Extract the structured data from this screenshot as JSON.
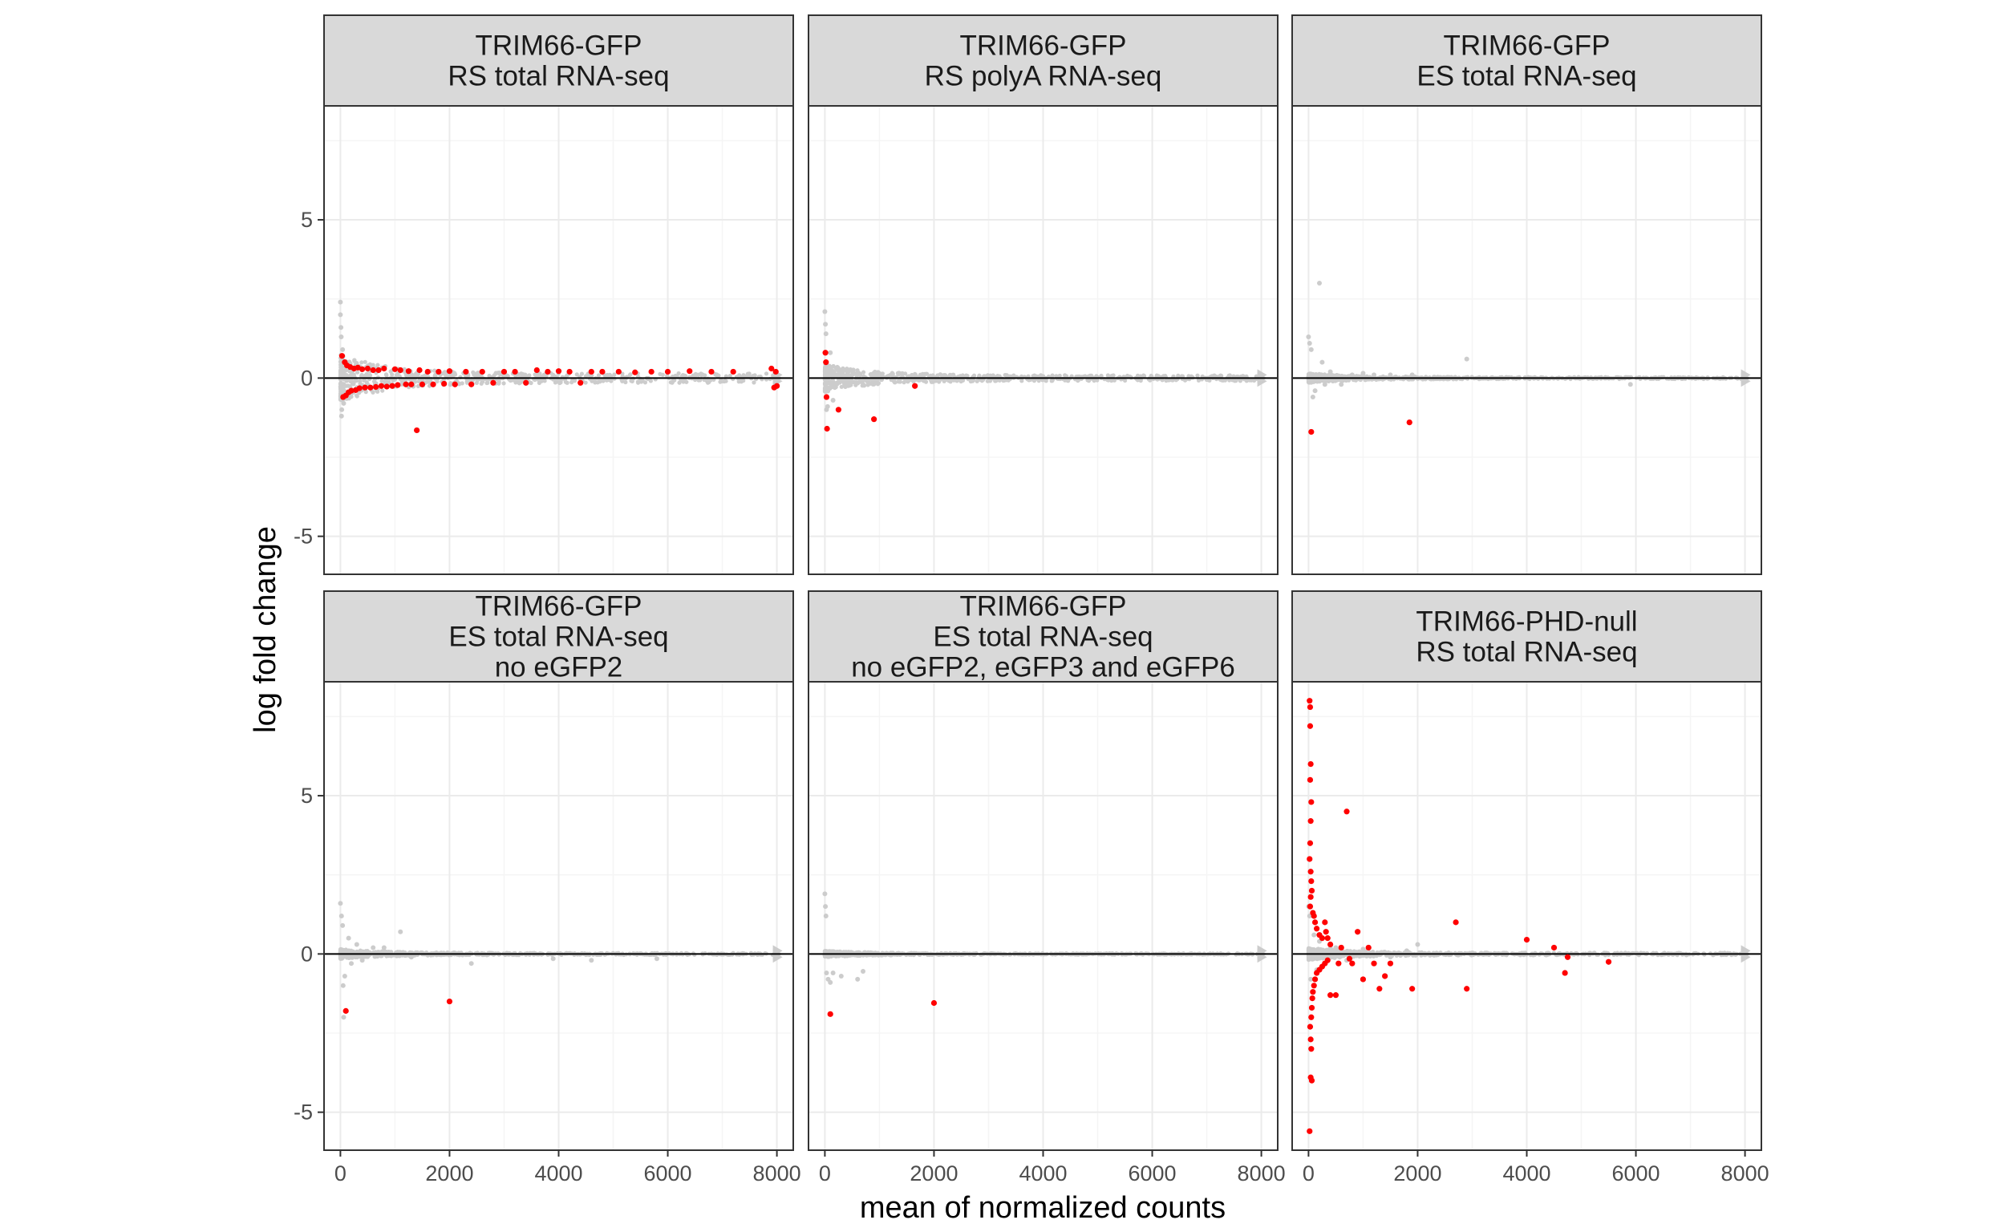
{
  "chart_data": {
    "type": "scatter",
    "xlabel": "mean of normalized counts",
    "ylabel": "log fold change",
    "xlim": [
      -300,
      8300
    ],
    "ylim": [
      -6.2,
      8.6
    ],
    "x_ticks": [
      0,
      2000,
      4000,
      6000,
      8000
    ],
    "x_tick_labels": [
      "0",
      "2000",
      "4000",
      "6000",
      "8000"
    ],
    "y_ticks": [
      -5,
      0,
      5
    ],
    "y_tick_labels": [
      "-5",
      "0",
      "5"
    ],
    "grid": true,
    "colors": {
      "significant": "#ff0000",
      "not_significant": "#cccccc",
      "strip_background": "#d9d9d9",
      "grid_major": "#ebebeb",
      "grid_minor": "#f5f5f5",
      "panel_border": "#333333",
      "zero_line": "#000000"
    },
    "panels": [
      {
        "strip": [
          "TRIM66-GFP",
          "RS total RNA-seq"
        ],
        "significant": [
          [
            30,
            0.7
          ],
          [
            50,
            -0.6
          ],
          [
            80,
            0.5
          ],
          [
            100,
            -0.55
          ],
          [
            120,
            0.4
          ],
          [
            150,
            -0.45
          ],
          [
            180,
            0.35
          ],
          [
            200,
            -0.4
          ],
          [
            250,
            0.3
          ],
          [
            280,
            -0.38
          ],
          [
            320,
            0.33
          ],
          [
            350,
            -0.32
          ],
          [
            400,
            0.28
          ],
          [
            450,
            -0.3
          ],
          [
            500,
            0.3
          ],
          [
            550,
            -0.3
          ],
          [
            600,
            0.25
          ],
          [
            650,
            -0.28
          ],
          [
            700,
            0.25
          ],
          [
            750,
            -0.25
          ],
          [
            800,
            0.3
          ],
          [
            850,
            -0.27
          ],
          [
            950,
            -0.25
          ],
          [
            1000,
            0.28
          ],
          [
            1050,
            -0.22
          ],
          [
            1100,
            0.25
          ],
          [
            1200,
            -0.2
          ],
          [
            1250,
            0.22
          ],
          [
            1300,
            -0.2
          ],
          [
            1400,
            -1.65
          ],
          [
            1450,
            0.25
          ],
          [
            1500,
            -0.2
          ],
          [
            1600,
            0.2
          ],
          [
            1700,
            -0.2
          ],
          [
            1800,
            0.2
          ],
          [
            1900,
            -0.18
          ],
          [
            2000,
            0.22
          ],
          [
            2100,
            -0.2
          ],
          [
            2300,
            0.2
          ],
          [
            2400,
            -0.2
          ],
          [
            2600,
            0.2
          ],
          [
            2800,
            -0.15
          ],
          [
            3000,
            0.2
          ],
          [
            3200,
            0.2
          ],
          [
            3400,
            -0.15
          ],
          [
            3600,
            0.25
          ],
          [
            3800,
            0.2
          ],
          [
            4000,
            0.22
          ],
          [
            4200,
            0.2
          ],
          [
            4400,
            -0.15
          ],
          [
            4600,
            0.2
          ],
          [
            4800,
            0.2
          ],
          [
            5100,
            0.2
          ],
          [
            5400,
            0.18
          ],
          [
            5700,
            0.2
          ],
          [
            6000,
            0.2
          ],
          [
            6400,
            0.22
          ],
          [
            6800,
            0.2
          ],
          [
            7200,
            0.2
          ],
          [
            7900,
            0.3
          ],
          [
            7950,
            -0.3
          ],
          [
            7980,
            0.2
          ],
          [
            8000,
            -0.25
          ]
        ],
        "nonsignificant": [
          [
            0,
            2.4
          ],
          [
            0,
            2.0
          ],
          [
            10,
            1.6
          ],
          [
            15,
            1.3
          ],
          [
            20,
            -1.2
          ],
          [
            25,
            -1.0
          ],
          [
            40,
            0.9
          ],
          [
            60,
            -0.8
          ]
        ]
      },
      {
        "strip": [
          "TRIM66-GFP",
          "RS polyA RNA-seq"
        ],
        "significant": [
          [
            10,
            0.8
          ],
          [
            20,
            0.5
          ],
          [
            30,
            -0.6
          ],
          [
            40,
            -1.6
          ],
          [
            250,
            -1.0
          ],
          [
            900,
            -1.3
          ],
          [
            1650,
            -0.25
          ]
        ],
        "nonsignificant": [
          [
            0,
            2.1
          ],
          [
            10,
            1.7
          ],
          [
            20,
            1.4
          ],
          [
            30,
            -1.0
          ],
          [
            50,
            -0.9
          ],
          [
            100,
            0.8
          ],
          [
            150,
            -0.7
          ]
        ]
      },
      {
        "strip": [
          "TRIM66-GFP",
          "ES total RNA-seq"
        ],
        "significant": [
          [
            50,
            -1.7
          ],
          [
            1850,
            -1.4
          ]
        ],
        "nonsignificant": [
          [
            0,
            1.3
          ],
          [
            20,
            1.1
          ],
          [
            50,
            0.9
          ],
          [
            200,
            3.0
          ],
          [
            80,
            -0.6
          ],
          [
            120,
            -0.4
          ],
          [
            250,
            0.5
          ],
          [
            300,
            -0.2
          ],
          [
            400,
            0.2
          ],
          [
            600,
            -0.2
          ],
          [
            800,
            0.1
          ],
          [
            1000,
            0.15
          ],
          [
            1200,
            0.1
          ],
          [
            1500,
            0.1
          ],
          [
            1900,
            0.1
          ],
          [
            2900,
            0.6
          ],
          [
            5900,
            -0.2
          ]
        ]
      },
      {
        "strip": [
          "TRIM66-GFP",
          "ES total RNA-seq",
          "no eGFP2"
        ],
        "significant": [
          [
            100,
            -1.8
          ],
          [
            2000,
            -1.5
          ]
        ],
        "nonsignificant": [
          [
            0,
            1.6
          ],
          [
            20,
            1.2
          ],
          [
            40,
            0.9
          ],
          [
            50,
            -1.0
          ],
          [
            60,
            -2.0
          ],
          [
            80,
            -0.7
          ],
          [
            150,
            0.5
          ],
          [
            200,
            -0.3
          ],
          [
            300,
            0.3
          ],
          [
            400,
            -0.2
          ],
          [
            600,
            0.2
          ],
          [
            800,
            0.2
          ],
          [
            1100,
            0.7
          ],
          [
            1300,
            -0.1
          ],
          [
            2400,
            -0.3
          ],
          [
            3900,
            -0.15
          ],
          [
            4600,
            -0.2
          ],
          [
            5800,
            -0.15
          ]
        ]
      },
      {
        "strip": [
          "TRIM66-GFP",
          "ES total RNA-seq",
          "no eGFP2, eGFP3 and eGFP6"
        ],
        "significant": [
          [
            100,
            -1.9
          ],
          [
            2000,
            -1.55
          ]
        ],
        "nonsignificant": [
          [
            0,
            1.9
          ],
          [
            10,
            1.5
          ],
          [
            20,
            1.2
          ],
          [
            30,
            -0.6
          ],
          [
            60,
            -0.8
          ],
          [
            100,
            -0.9
          ],
          [
            150,
            -0.6
          ],
          [
            300,
            -0.7
          ],
          [
            600,
            -0.8
          ],
          [
            700,
            -0.55
          ]
        ]
      },
      {
        "strip": [
          "TRIM66-PHD-null",
          "RS total RNA-seq"
        ],
        "significant": [
          [
            20,
            8.0
          ],
          [
            30,
            7.8
          ],
          [
            30,
            7.2
          ],
          [
            40,
            6.0
          ],
          [
            30,
            5.5
          ],
          [
            50,
            4.8
          ],
          [
            40,
            4.2
          ],
          [
            30,
            3.5
          ],
          [
            20,
            3.0
          ],
          [
            40,
            2.6
          ],
          [
            50,
            2.3
          ],
          [
            60,
            2.0
          ],
          [
            40,
            1.8
          ],
          [
            30,
            1.5
          ],
          [
            80,
            1.3
          ],
          [
            100,
            1.2
          ],
          [
            120,
            1.0
          ],
          [
            150,
            0.8
          ],
          [
            200,
            0.6
          ],
          [
            250,
            0.5
          ],
          [
            300,
            1.0
          ],
          [
            320,
            0.7
          ],
          [
            350,
            0.5
          ],
          [
            400,
            0.3
          ],
          [
            20,
            -5.6
          ],
          [
            40,
            -3.9
          ],
          [
            60,
            -4.0
          ],
          [
            50,
            -3.0
          ],
          [
            40,
            -2.7
          ],
          [
            30,
            -2.3
          ],
          [
            50,
            -2.0
          ],
          [
            60,
            -1.7
          ],
          [
            70,
            -1.4
          ],
          [
            80,
            -1.2
          ],
          [
            100,
            -1.0
          ],
          [
            120,
            -0.8
          ],
          [
            150,
            -0.6
          ],
          [
            200,
            -0.5
          ],
          [
            250,
            -0.4
          ],
          [
            300,
            -0.3
          ],
          [
            350,
            -0.2
          ],
          [
            400,
            -1.3
          ],
          [
            500,
            -1.3
          ],
          [
            550,
            -0.3
          ],
          [
            600,
            0.2
          ],
          [
            700,
            4.5
          ],
          [
            750,
            -0.15
          ],
          [
            800,
            -0.3
          ],
          [
            900,
            0.7
          ],
          [
            1000,
            -0.8
          ],
          [
            1100,
            0.2
          ],
          [
            1200,
            -0.3
          ],
          [
            1300,
            -1.1
          ],
          [
            1400,
            -0.7
          ],
          [
            1500,
            -0.3
          ],
          [
            1900,
            -1.1
          ],
          [
            2700,
            1.0
          ],
          [
            2900,
            -1.1
          ],
          [
            4000,
            0.45
          ],
          [
            4500,
            0.2
          ],
          [
            4700,
            -0.6
          ],
          [
            4750,
            -0.1
          ],
          [
            5500,
            -0.25
          ]
        ],
        "nonsignificant": [
          [
            0,
            1.5
          ],
          [
            20,
            1.2
          ],
          [
            40,
            -0.8
          ],
          [
            100,
            0.6
          ],
          [
            150,
            -0.5
          ],
          [
            200,
            0.4
          ],
          [
            300,
            -0.3
          ],
          [
            400,
            0.2
          ],
          [
            500,
            0.2
          ],
          [
            700,
            -0.2
          ],
          [
            1000,
            0.15
          ],
          [
            1500,
            -0.1
          ],
          [
            1800,
            0.1
          ],
          [
            2000,
            0.3
          ]
        ]
      }
    ]
  }
}
